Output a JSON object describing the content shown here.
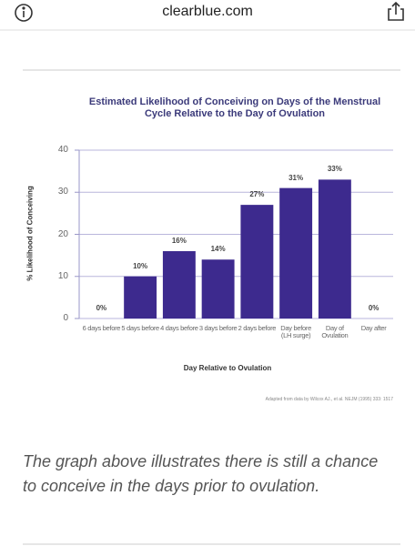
{
  "browser": {
    "url": "clearblue.com"
  },
  "chart_data": {
    "type": "bar",
    "title": "Estimated Likelihood of Conceiving on Days of the Menstrual Cycle Relative to the Day of Ovulation",
    "x_label": "Day Relative to Ovulation",
    "y_label": "% Likelihood of Conceiving",
    "categories": [
      "6 days before",
      "5 days before",
      "4 days before",
      "3 days before",
      "2 days before",
      "Day before (LH surge)",
      "Day of Ovulation",
      "Day after"
    ],
    "values": [
      0,
      10,
      16,
      14,
      27,
      31,
      33,
      0
    ],
    "value_labels": [
      "0%",
      "10%",
      "16%",
      "14%",
      "27%",
      "31%",
      "33%",
      "0%"
    ],
    "color": "#3d2a8e",
    "ylim": [
      0,
      40
    ],
    "yticks": [
      0,
      10,
      20,
      30,
      40
    ],
    "grid": true,
    "source": "Adapted from data by Wilcox AJ., et al. NEJM (1995) 333: 1517"
  },
  "caption": "The graph above illustrates there is still a chance to conceive in the days prior to ovulation."
}
